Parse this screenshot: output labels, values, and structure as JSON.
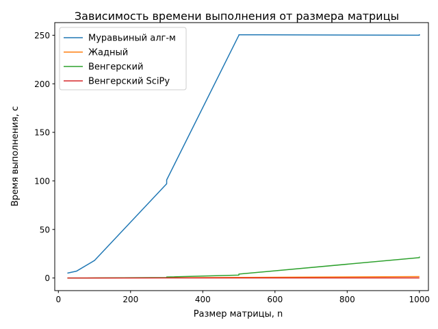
{
  "chart_data": {
    "type": "line",
    "title": "Зависимость времени выполнения от размера матрицы",
    "xlabel": "Размер матрицы, n",
    "ylabel": "Время выполнения, с",
    "xlim": [
      -10,
      1025
    ],
    "ylim": [
      -13,
      263
    ],
    "xticks": [
      0,
      200,
      400,
      600,
      800,
      1000
    ],
    "yticks": [
      0,
      50,
      100,
      150,
      200,
      250
    ],
    "grid": false,
    "legend_position": "top-left",
    "series": [
      {
        "name": "Муравьиный алг-м",
        "color": "#1f77b4",
        "x": [
          25,
          50,
          100,
          300,
          300,
          500,
          500,
          1000,
          1000
        ],
        "y": [
          5,
          7,
          18,
          97,
          101,
          250,
          250.5,
          250,
          251
        ]
      },
      {
        "name": "Жадный",
        "color": "#ff7f0e",
        "x": [
          25,
          50,
          100,
          300,
          500,
          1000
        ],
        "y": [
          0.0,
          0.01,
          0.02,
          0.2,
          0.6,
          1.5
        ]
      },
      {
        "name": "Венгерский",
        "color": "#2ca02c",
        "x": [
          25,
          50,
          100,
          300,
          300,
          500,
          500,
          1000,
          1000
        ],
        "y": [
          0,
          0,
          0.02,
          0.5,
          1,
          3,
          4,
          21,
          22
        ]
      },
      {
        "name": "Венгерский SciPy",
        "color": "#d62728",
        "x": [
          25,
          50,
          100,
          300,
          500,
          1000
        ],
        "y": [
          0,
          0,
          0,
          0.02,
          0.05,
          0.1
        ]
      }
    ]
  }
}
